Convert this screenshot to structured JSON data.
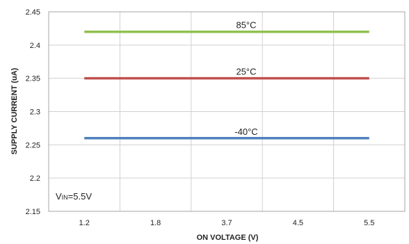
{
  "chart_data": {
    "type": "line",
    "title": "",
    "xlabel": "ON VOLTAGE (V)",
    "ylabel": "SUPPLY CURRENT (uA)",
    "categories": [
      "1.2",
      "1.8",
      "3.7",
      "4.5",
      "5.5"
    ],
    "ylim": [
      2.15,
      2.45
    ],
    "yticks": [
      "2.15",
      "2.2",
      "2.25",
      "2.3",
      "2.35",
      "2.4",
      "2.45"
    ],
    "grid": true,
    "series": [
      {
        "name": "85°C",
        "color": "#92C050",
        "values": [
          2.42,
          2.42,
          2.42,
          2.42,
          2.42
        ]
      },
      {
        "name": "25°C",
        "color": "#C0504D",
        "values": [
          2.35,
          2.35,
          2.35,
          2.35,
          2.35
        ]
      },
      {
        "name": "-40°C",
        "color": "#4F81BD",
        "values": [
          2.26,
          2.26,
          2.26,
          2.26,
          2.26
        ]
      }
    ],
    "annotation": {
      "main": "V",
      "sub": "IN",
      "rest": "=5.5V"
    }
  }
}
